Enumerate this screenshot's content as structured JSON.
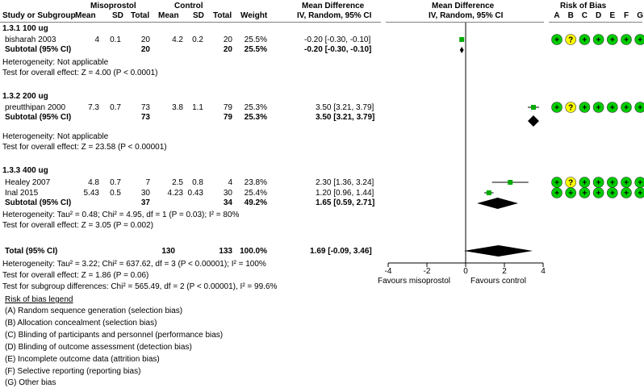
{
  "header": {
    "group_misoprostol": "Misoprostol",
    "group_control": "Control",
    "study_col": "Study or Subgroup",
    "mean1": "Mean",
    "sd1": "SD",
    "total1": "Total",
    "mean2": "Mean",
    "sd2": "SD",
    "total2": "Total",
    "weight": "Weight",
    "md_title": "Mean Difference",
    "md_sub": "IV, Random, 95% CI",
    "plot_title": "Mean Difference",
    "plot_sub": "IV, Random, 95% CI",
    "rob_title": "Risk of Bias",
    "rob_letters": [
      "A",
      "B",
      "C",
      "D",
      "E",
      "F",
      "G"
    ]
  },
  "subgroups": [
    {
      "title": "1.3.1 100 ug",
      "studies": [
        {
          "name": "bisharah 2003",
          "m1": "4",
          "sd1": "0.1",
          "n1": "20",
          "m2": "4.2",
          "sd2": "0.2",
          "n2": "20",
          "weight": "25.5%",
          "ci": "-0.20 [-0.30, -0.10]",
          "est": -0.2,
          "lo": -0.3,
          "hi": -0.1,
          "rob": [
            "+",
            "?",
            "+",
            "+",
            "+",
            "+",
            "+"
          ]
        }
      ],
      "subtotal": {
        "label": "Subtotal (95% CI)",
        "n1": "20",
        "n2": "20",
        "weight": "25.5%",
        "ci": "-0.20 [-0.30, -0.10]",
        "est": -0.2,
        "lo": -0.3,
        "hi": -0.1
      },
      "heterogeneity": "Heterogeneity: Not applicable",
      "overall": "Test for overall effect: Z = 4.00 (P < 0.0001)"
    },
    {
      "title": "1.3.2 200 ug",
      "studies": [
        {
          "name": "preutthipan 2000",
          "m1": "7.3",
          "sd1": "0.7",
          "n1": "73",
          "m2": "3.8",
          "sd2": "1.1",
          "n2": "79",
          "weight": "25.3%",
          "ci": "3.50 [3.21, 3.79]",
          "est": 3.5,
          "lo": 3.21,
          "hi": 3.79,
          "rob": [
            "+",
            "?",
            "+",
            "+",
            "+",
            "+",
            "+"
          ]
        }
      ],
      "subtotal": {
        "label": "Subtotal (95% CI)",
        "n1": "73",
        "n2": "79",
        "weight": "25.3%",
        "ci": "3.50 [3.21, 3.79]",
        "est": 3.5,
        "lo": 3.21,
        "hi": 3.79
      },
      "heterogeneity": "Heterogeneity: Not applicable",
      "overall": "Test for overall effect: Z = 23.58 (P < 0.00001)"
    },
    {
      "title": "1.3.3 400 ug",
      "studies": [
        {
          "name": "Healey 2007",
          "m1": "4.8",
          "sd1": "0.7",
          "n1": "7",
          "m2": "2.5",
          "sd2": "0.8",
          "n2": "4",
          "weight": "23.8%",
          "ci": "2.30 [1.36, 3.24]",
          "est": 2.3,
          "lo": 1.36,
          "hi": 3.24,
          "rob": [
            "+",
            "?",
            "+",
            "+",
            "+",
            "+",
            "+"
          ]
        },
        {
          "name": "Inal 2015",
          "m1": "5.43",
          "sd1": "0.5",
          "n1": "30",
          "m2": "4.23",
          "sd2": "0.43",
          "n2": "30",
          "weight": "25.4%",
          "ci": "1.20 [0.96, 1.44]",
          "est": 1.2,
          "lo": 0.96,
          "hi": 1.44,
          "rob": [
            "+",
            "+",
            "+",
            "+",
            "+",
            "+",
            "+"
          ]
        }
      ],
      "subtotal": {
        "label": "Subtotal (95% CI)",
        "n1": "37",
        "n2": "34",
        "weight": "49.2%",
        "ci": "1.65 [0.59, 2.71]",
        "est": 1.65,
        "lo": 0.59,
        "hi": 2.71
      },
      "heterogeneity": "Heterogeneity: Tau² = 0.48; Chi² = 4.95, df = 1 (P = 0.03); I² = 80%",
      "overall": "Test for overall effect: Z = 3.05 (P = 0.002)"
    }
  ],
  "total": {
    "label": "Total (95% CI)",
    "n1": "130",
    "n2": "133",
    "weight": "100.0%",
    "ci": "1.69 [-0.09, 3.46]",
    "est": 1.69,
    "lo": -0.09,
    "hi": 3.46,
    "heterogeneity": "Heterogeneity: Tau² = 3.22; Chi² = 637.62, df = 3 (P < 0.00001); I² = 100%",
    "overall": "Test for overall effect: Z = 1.86 (P = 0.06)",
    "subgroup_diff": "Test for subgroup differences: Chi² = 565.49, df = 2 (P < 0.00001), I² = 99.6%"
  },
  "chart_data": {
    "type": "scatter",
    "title": "Mean Difference",
    "subtitle": "IV, Random, 95% CI",
    "xlim": [
      -4,
      4
    ],
    "x_ticks": [
      "-4",
      "-2",
      "0",
      "2",
      "4"
    ],
    "favours_left": "Favours misoprostol",
    "favours_right": "Favours control",
    "colors": {
      "study": "#00aa00",
      "diamond": "#000000",
      "low_risk": "#00cc00",
      "unclear_risk": "#ffff00"
    }
  },
  "legend": {
    "title": "Risk of bias legend",
    "items": [
      "(A) Random sequence generation (selection bias)",
      "(B) Allocation concealment (selection bias)",
      "(C) Blinding of participants and personnel (performance bias)",
      "(D) Blinding of outcome assessment (detection bias)",
      "(E) Incomplete outcome data (attrition bias)",
      "(F) Selective reporting (reporting bias)",
      "(G) Other bias"
    ]
  }
}
